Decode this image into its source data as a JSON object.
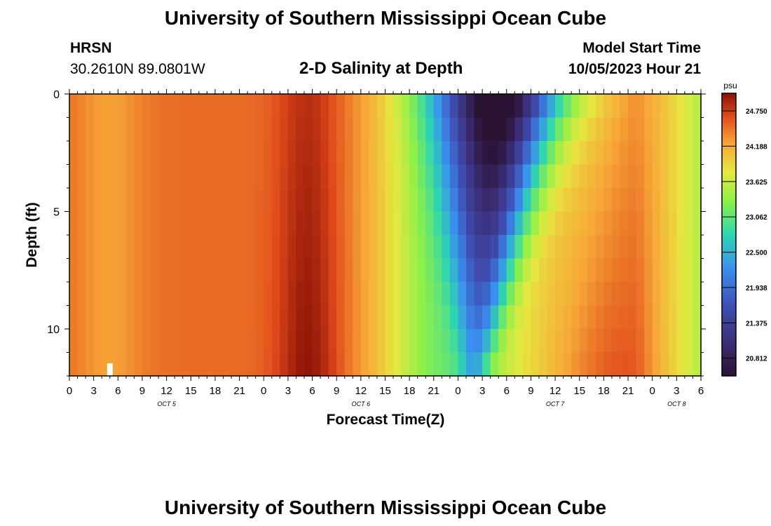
{
  "header": {
    "title": "University of Southern Mississippi Ocean Cube",
    "station": "HRSN",
    "coords": "30.2610N  89.0801W",
    "plot_title": "2-D Salinity at Depth",
    "model_label": "Model Start Time",
    "model_time": "10/05/2023 Hour 21"
  },
  "footer": {
    "title": "University of Southern Mississippi Ocean Cube"
  },
  "chart_data": {
    "type": "heatmap",
    "title": "2-D Salinity at Depth",
    "xlabel": "Forecast Time(Z)",
    "ylabel": "Depth (ft)",
    "x_tick_labels": [
      "0",
      "3",
      "6",
      "9",
      "12",
      "15",
      "18",
      "21",
      "0",
      "3",
      "6",
      "9",
      "12",
      "15",
      "18",
      "21",
      "0",
      "3",
      "6",
      "9",
      "12",
      "15",
      "18",
      "21",
      "0",
      "3",
      "6"
    ],
    "day_labels": [
      {
        "label": "OCT 5",
        "hour": 12
      },
      {
        "label": "OCT 6",
        "hour": 36
      },
      {
        "label": "OCT 7",
        "hour": 60
      },
      {
        "label": "OCT 8",
        "hour": 75
      }
    ],
    "xlim_hours": [
      0,
      78
    ],
    "y_ticks": [
      0,
      5,
      10
    ],
    "ylim": [
      0,
      12
    ],
    "colorbar": {
      "unit": "psu",
      "ticks": [
        "24.750",
        "24.188",
        "23.625",
        "23.062",
        "22.500",
        "21.938",
        "21.375",
        "20.812"
      ],
      "range": [
        20.53,
        25.03
      ]
    },
    "value_range_psu": [
      20.6,
      24.9
    ],
    "marker_hour": 5
  }
}
